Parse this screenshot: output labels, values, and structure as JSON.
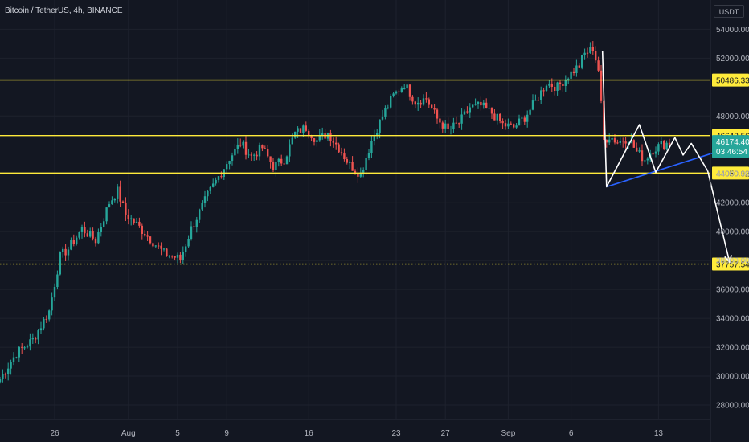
{
  "header": {
    "title": "Bitcoin / TetherUS, 4h, BINANCE",
    "currency": "USDT"
  },
  "colors": {
    "background": "#131722",
    "grid": "#1e222d",
    "up": "#26a69a",
    "down": "#ef5350",
    "level": "#ffeb3b",
    "pattern": "#ffffff",
    "trendline": "#2962ff",
    "axis_text": "#b2b5be",
    "price_label_bg": "#26a69a"
  },
  "chart_data": {
    "type": "candlestick",
    "title": "Bitcoin / TetherUS, 4h, BINANCE",
    "x_ticks": [
      {
        "label": "26",
        "index": 20
      },
      {
        "label": "Aug",
        "index": 47
      },
      {
        "label": "5",
        "index": 65
      },
      {
        "label": "9",
        "index": 83
      },
      {
        "label": "16",
        "index": 113
      },
      {
        "label": "23",
        "index": 145
      },
      {
        "label": "27",
        "index": 163
      },
      {
        "label": "Sep",
        "index": 186
      },
      {
        "label": "6",
        "index": 209
      },
      {
        "label": "13",
        "index": 241
      }
    ],
    "y_ticks": [
      28000,
      30000,
      32000,
      34000,
      36000,
      38000,
      40000,
      42000,
      44000,
      48000,
      52000,
      54000
    ],
    "y_tick_labels": [
      "28000.00",
      "30000.00",
      "32000.00",
      "34000.00",
      "36000.00",
      "38000.00",
      "40000.00",
      "42000.00",
      "44000.00",
      "48000.00",
      "52000.00",
      "54000.00"
    ],
    "ylim": [
      27000,
      55800
    ],
    "levels": [
      {
        "value": 50486.33,
        "label": "50486.33",
        "style": "solid"
      },
      {
        "value": 46642.56,
        "label": "46642.56",
        "style": "solid"
      },
      {
        "value": 44050.92,
        "label": "44050.92",
        "style": "solid"
      },
      {
        "value": 37757.54,
        "label": "37757.54",
        "style": "dotted"
      }
    ],
    "current_price": {
      "value": 46174.4,
      "label": "46174.40",
      "countdown": "03:46:54"
    },
    "key_closes": [
      [
        0,
        29800
      ],
      [
        6,
        31600
      ],
      [
        12,
        32500
      ],
      [
        18,
        34500
      ],
      [
        22,
        38300
      ],
      [
        25,
        38800
      ],
      [
        30,
        40200
      ],
      [
        35,
        39400
      ],
      [
        40,
        42000
      ],
      [
        43,
        42800
      ],
      [
        46,
        41200
      ],
      [
        50,
        40500
      ],
      [
        55,
        39500
      ],
      [
        60,
        38500
      ],
      [
        66,
        38100
      ],
      [
        70,
        40200
      ],
      [
        76,
        42500
      ],
      [
        80,
        43800
      ],
      [
        84,
        45100
      ],
      [
        88,
        46100
      ],
      [
        92,
        45200
      ],
      [
        96,
        45800
      ],
      [
        100,
        44500
      ],
      [
        104,
        45000
      ],
      [
        108,
        46800
      ],
      [
        112,
        47200
      ],
      [
        116,
        46300
      ],
      [
        120,
        46800
      ],
      [
        124,
        45800
      ],
      [
        128,
        44600
      ],
      [
        132,
        44000
      ],
      [
        136,
        46300
      ],
      [
        140,
        48000
      ],
      [
        144,
        49400
      ],
      [
        148,
        50200
      ],
      [
        152,
        49000
      ],
      [
        156,
        49200
      ],
      [
        160,
        47800
      ],
      [
        164,
        47000
      ],
      [
        168,
        47500
      ],
      [
        172,
        48600
      ],
      [
        176,
        48700
      ],
      [
        180,
        48200
      ],
      [
        184,
        47400
      ],
      [
        188,
        47200
      ],
      [
        192,
        47900
      ],
      [
        196,
        49000
      ],
      [
        200,
        50300
      ],
      [
        204,
        50000
      ],
      [
        208,
        50800
      ],
      [
        212,
        51500
      ],
      [
        214,
        52300
      ],
      [
        217,
        52700
      ],
      [
        219,
        51200
      ],
      [
        221,
        46300
      ],
      [
        223,
        46600
      ],
      [
        226,
        46200
      ],
      [
        230,
        46500
      ],
      [
        233,
        45500
      ],
      [
        236,
        45000
      ],
      [
        239,
        45700
      ],
      [
        242,
        46000
      ],
      [
        245,
        46174.4
      ]
    ],
    "pattern": {
      "white_zigzag": [
        [
          220.5,
          52500
        ],
        [
          222,
          43100
        ],
        [
          234,
          47400
        ],
        [
          240,
          44100
        ],
        [
          247,
          46500
        ],
        [
          250,
          45300
        ],
        [
          253,
          46100
        ],
        [
          259,
          44200
        ]
      ],
      "down_arrow": [
        [
          259,
          44200
        ],
        [
          267,
          37900
        ]
      ],
      "trendline": [
        [
          222,
          43100
        ],
        [
          262,
          45500
        ]
      ]
    }
  }
}
